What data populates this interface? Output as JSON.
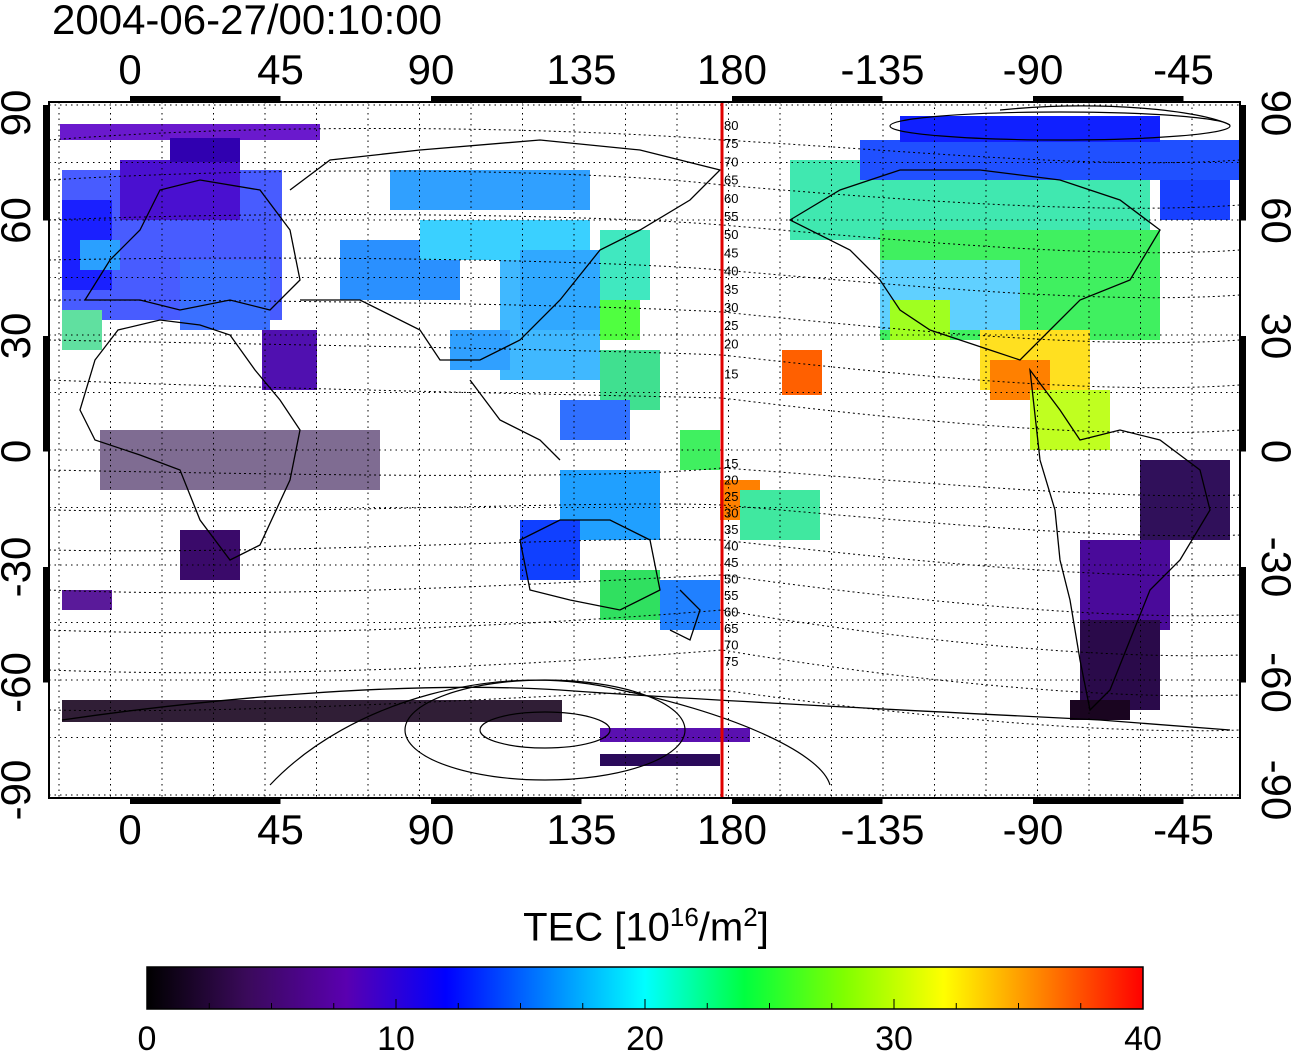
{
  "title": "2004-06-27/00:10:00",
  "map": {
    "x_tick_labels": [
      "0",
      "45",
      "90",
      "135",
      "180",
      "-135",
      "-90",
      "-45"
    ],
    "y_tick_labels": [
      "90",
      "60",
      "30",
      "0",
      "-30",
      "-60",
      "-90"
    ],
    "meridian_marker": {
      "longitude": 180,
      "color": "#e00000"
    },
    "contour_labels_north": [
      "80",
      "75",
      "70",
      "65",
      "60",
      "55",
      "50",
      "45",
      "40",
      "35",
      "30",
      "25",
      "20",
      "15"
    ],
    "contour_labels_south": [
      "15",
      "20",
      "25",
      "30",
      "35",
      "40",
      "45",
      "50",
      "55",
      "60",
      "65",
      "70",
      "75"
    ]
  },
  "colorbar": {
    "title_prefix": "TEC  [10",
    "title_sup1": "16",
    "title_mid": "/m",
    "title_sup2": "2",
    "title_suffix": "]",
    "min": 0,
    "max": 40,
    "tick_labels": [
      "0",
      "10",
      "20",
      "30",
      "40"
    ],
    "colormap": [
      "#000000",
      "#3a0a5a",
      "#5a00b0",
      "#0000ff",
      "#0080ff",
      "#00ffff",
      "#00ff40",
      "#80ff00",
      "#ffff00",
      "#ff8000",
      "#ff0000"
    ]
  }
}
